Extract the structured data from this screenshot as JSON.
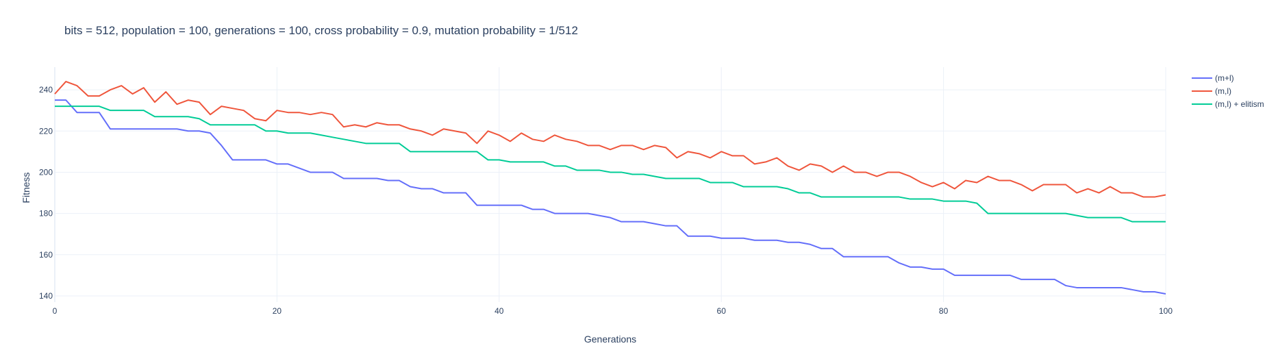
{
  "colors": {
    "text": "#2a3f5f",
    "grid": "#ebf0f8",
    "axis": "#ebf0f8"
  },
  "chart_data": {
    "type": "line",
    "title": "bits = 512, population = 100, generations = 100, cross probability = 0.9, mutation probability = 1/512",
    "xlabel": "Generations",
    "ylabel": "Fitness",
    "xlim": [
      0,
      100
    ],
    "ylim": [
      137,
      251
    ],
    "xticks": [
      0,
      20,
      40,
      60,
      80,
      100
    ],
    "yticks": [
      140,
      160,
      180,
      200,
      220,
      240
    ],
    "grid": true,
    "legend_position": "top-right",
    "series": [
      {
        "name": "(m+l)",
        "color": "#636efa",
        "values": [
          235,
          235,
          229,
          229,
          229,
          221,
          221,
          221,
          221,
          221,
          221,
          221,
          220,
          220,
          219,
          213,
          206,
          206,
          206,
          206,
          204,
          204,
          202,
          200,
          200,
          200,
          197,
          197,
          197,
          197,
          196,
          196,
          193,
          192,
          192,
          190,
          190,
          190,
          184,
          184,
          184,
          184,
          184,
          182,
          182,
          180,
          180,
          180,
          180,
          179,
          178,
          176,
          176,
          176,
          175,
          174,
          174,
          169,
          169,
          169,
          168,
          168,
          168,
          167,
          167,
          167,
          166,
          166,
          165,
          163,
          163,
          159,
          159,
          159,
          159,
          159,
          156,
          154,
          154,
          153,
          153,
          150,
          150,
          150,
          150,
          150,
          150,
          148,
          148,
          148,
          148,
          145,
          144,
          144,
          144,
          144,
          144,
          143,
          142,
          142,
          141
        ]
      },
      {
        "name": "(m,l)",
        "color": "#ef553b",
        "values": [
          238,
          244,
          242,
          237,
          237,
          240,
          242,
          238,
          241,
          234,
          239,
          233,
          235,
          234,
          228,
          232,
          231,
          230,
          226,
          225,
          230,
          229,
          229,
          228,
          229,
          228,
          222,
          223,
          222,
          224,
          223,
          223,
          221,
          220,
          218,
          221,
          220,
          219,
          214,
          220,
          218,
          215,
          219,
          216,
          215,
          218,
          216,
          215,
          213,
          213,
          211,
          213,
          213,
          211,
          213,
          212,
          207,
          210,
          209,
          207,
          210,
          208,
          208,
          204,
          205,
          207,
          203,
          201,
          204,
          203,
          200,
          203,
          200,
          200,
          198,
          200,
          200,
          198,
          195,
          193,
          195,
          192,
          196,
          195,
          198,
          196,
          196,
          194,
          191,
          194,
          194,
          194,
          190,
          192,
          190,
          193,
          190,
          190,
          188,
          188,
          189
        ]
      },
      {
        "name": "(m,l) + elitism",
        "color": "#00cc96",
        "values": [
          232,
          232,
          232,
          232,
          232,
          230,
          230,
          230,
          230,
          227,
          227,
          227,
          227,
          226,
          223,
          223,
          223,
          223,
          223,
          220,
          220,
          219,
          219,
          219,
          218,
          217,
          216,
          215,
          214,
          214,
          214,
          214,
          210,
          210,
          210,
          210,
          210,
          210,
          210,
          206,
          206,
          205,
          205,
          205,
          205,
          203,
          203,
          201,
          201,
          201,
          200,
          200,
          199,
          199,
          198,
          197,
          197,
          197,
          197,
          195,
          195,
          195,
          193,
          193,
          193,
          193,
          192,
          190,
          190,
          188,
          188,
          188,
          188,
          188,
          188,
          188,
          188,
          187,
          187,
          187,
          186,
          186,
          186,
          185,
          180,
          180,
          180,
          180,
          180,
          180,
          180,
          180,
          179,
          178,
          178,
          178,
          178,
          176,
          176,
          176,
          176
        ]
      }
    ]
  }
}
